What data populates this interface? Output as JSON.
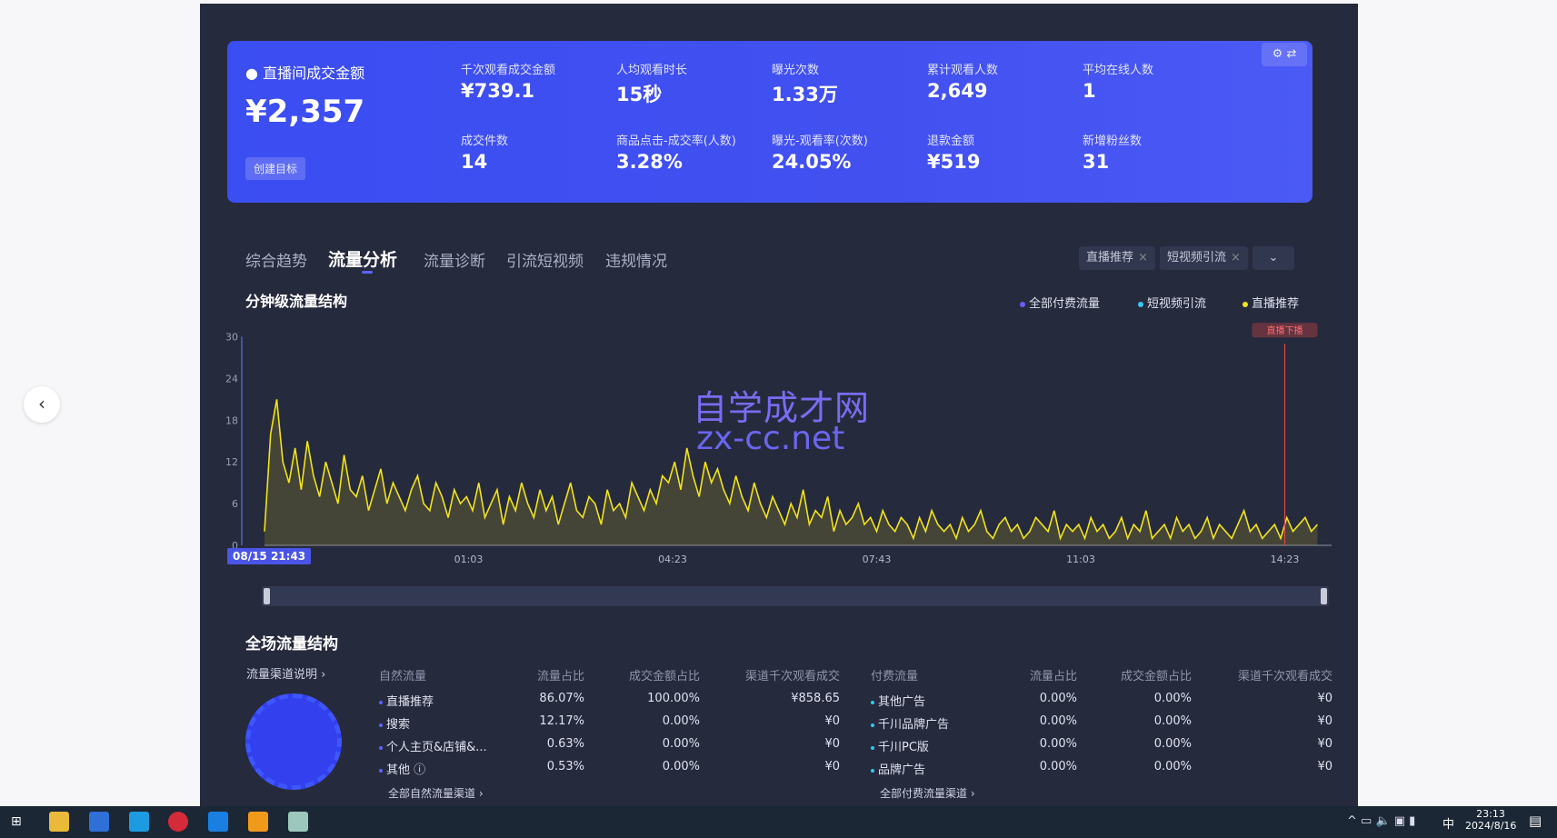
{
  "nav": {
    "back_icon": "chevron-left-icon"
  },
  "card": {
    "main_label": "直播间成交金额",
    "main_value": "¥2,357",
    "create_goal": "创建目标",
    "metrics": [
      {
        "label": "千次观看成交金额",
        "value": "¥739.1"
      },
      {
        "label": "人均观看时长",
        "value": "15秒"
      },
      {
        "label": "曝光次数",
        "value": "1.33万"
      },
      {
        "label": "累计观看人数",
        "value": "2,649"
      },
      {
        "label": "平均在线人数",
        "value": "1"
      },
      {
        "label": "成交件数",
        "value": "14"
      },
      {
        "label": "商品点击-成交率(人数)",
        "value": "3.28%"
      },
      {
        "label": "曝光-观看率(次数)",
        "value": "24.05%"
      },
      {
        "label": "退款金额",
        "value": "¥519"
      },
      {
        "label": "新增粉丝数",
        "value": "31"
      }
    ]
  },
  "tabs": [
    "综合趋势",
    "流量分析",
    "流量诊断",
    "引流短视频",
    "违规情况"
  ],
  "active_tab": "流量分析",
  "filters": [
    "直播推荐",
    "短视频引流"
  ],
  "chart_title": "分钟级流量结构",
  "watermark": {
    "cn": "自学成才网",
    "en": "zx-cc.net"
  },
  "chart_data": {
    "type": "line",
    "legend": [
      {
        "name": "全部付费流量",
        "color": "#6b5cff"
      },
      {
        "name": "短视频引流",
        "color": "#38c6f0"
      },
      {
        "name": "直播推荐",
        "color": "#f2e21a"
      }
    ],
    "legend_placement": "top-right",
    "start_label": "08/15 21:43",
    "x_ticks": [
      "01:03",
      "04:23",
      "07:43",
      "11:03",
      "14:23"
    ],
    "y_ticks": [
      0,
      6,
      12,
      18,
      24,
      30
    ],
    "ylim": [
      0,
      30
    ],
    "interval_minutes": 6,
    "marker": {
      "time": "14:23",
      "label": "直播下播",
      "color": "#e04848"
    },
    "series": [
      {
        "name": "直播推荐",
        "color": "#f2e21a",
        "values": [
          2,
          16,
          21,
          12,
          9,
          14,
          8,
          15,
          10,
          7,
          12,
          9,
          6,
          13,
          8,
          7,
          10,
          5,
          8,
          11,
          6,
          9,
          7,
          5,
          8,
          10,
          6,
          5,
          9,
          7,
          4,
          8,
          6,
          7,
          5,
          9,
          4,
          6,
          8,
          3,
          7,
          5,
          9,
          6,
          4,
          8,
          5,
          7,
          3,
          6,
          9,
          5,
          4,
          7,
          6,
          3,
          8,
          5,
          6,
          4,
          9,
          7,
          5,
          8,
          6,
          10,
          9,
          12,
          8,
          14,
          10,
          7,
          12,
          9,
          11,
          8,
          6,
          10,
          7,
          5,
          9,
          6,
          4,
          7,
          5,
          3,
          6,
          4,
          8,
          3,
          5,
          4,
          7,
          2,
          5,
          3,
          4,
          6,
          3,
          4,
          2,
          5,
          3,
          2,
          4,
          3,
          1,
          4,
          2,
          5,
          3,
          2,
          3,
          1,
          4,
          2,
          3,
          5,
          2,
          1,
          3,
          4,
          2,
          3,
          1,
          2,
          4,
          3,
          2,
          5,
          1,
          3,
          2,
          3,
          1,
          4,
          2,
          3,
          1,
          2,
          4,
          1,
          3,
          2,
          5,
          1,
          2,
          3,
          1,
          4,
          2,
          3,
          1,
          2,
          4,
          1,
          3,
          2,
          1,
          3,
          5,
          2,
          3,
          1,
          2,
          3,
          1,
          4,
          2,
          3,
          4,
          2,
          3
        ]
      }
    ]
  },
  "section2": {
    "title": "全场流量结构",
    "channel_help": "流量渠道说明 ›",
    "natural": {
      "headers": [
        "自然流量",
        "流量占比",
        "成交金额占比",
        "渠道千次观看成交"
      ],
      "rows": [
        [
          "直播推荐",
          "86.07%",
          "100.00%",
          "¥858.65"
        ],
        [
          "搜索",
          "12.17%",
          "0.00%",
          "¥0"
        ],
        [
          "个人主页&店铺&...",
          "0.63%",
          "0.00%",
          "¥0"
        ],
        [
          "其他 ⓘ",
          "0.53%",
          "0.00%",
          "¥0"
        ]
      ],
      "link": "全部自然流量渠道 ›"
    },
    "paid": {
      "headers": [
        "付费流量",
        "流量占比",
        "成交金额占比",
        "渠道千次观看成交"
      ],
      "rows": [
        [
          "其他广告",
          "0.00%",
          "0.00%",
          "¥0"
        ],
        [
          "千川品牌广告",
          "0.00%",
          "0.00%",
          "¥0"
        ],
        [
          "千川PC版",
          "0.00%",
          "0.00%",
          "¥0"
        ],
        [
          "品牌广告",
          "0.00%",
          "0.00%",
          "¥0"
        ]
      ],
      "link": "全部付费流量渠道 ›"
    }
  },
  "taskbar": {
    "time": "23:13",
    "date": "2024/8/16",
    "ime": "中"
  }
}
